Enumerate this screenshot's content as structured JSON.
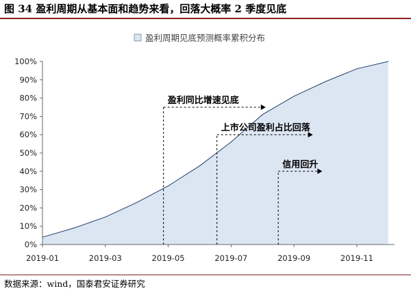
{
  "header": {
    "title": "图 34  盈利周期从基本面和趋势来看，回落大概率 2 季度见底"
  },
  "footer": {
    "source": "数据来源：wind，国泰君安证券研究"
  },
  "chart_data": {
    "type": "area",
    "legend": {
      "label": "盈利周期见底预测概率累积分布",
      "position": "top-center"
    },
    "x_axis": {
      "tick_labels": [
        "2019-01",
        "2019-03",
        "2019-05",
        "2019-07",
        "2019-09",
        "2019-11"
      ],
      "tick_months": [
        1,
        3,
        5,
        7,
        9,
        11
      ],
      "range": [
        1,
        12.2
      ]
    },
    "y_axis": {
      "tick_labels": [
        "0%",
        "10%",
        "20%",
        "30%",
        "40%",
        "50%",
        "60%",
        "70%",
        "80%",
        "90%",
        "100%"
      ],
      "tick_values": [
        0,
        10,
        20,
        30,
        40,
        50,
        60,
        70,
        80,
        90,
        100
      ],
      "range": [
        0,
        100
      ]
    },
    "series": [
      {
        "name": "盈利周期见底预测概率累积分布",
        "color": "#dce6f2",
        "edge_color": "#1f3c66",
        "points": [
          {
            "x": 1.0,
            "y": 4
          },
          {
            "x": 2.0,
            "y": 9
          },
          {
            "x": 3.0,
            "y": 15
          },
          {
            "x": 4.0,
            "y": 23
          },
          {
            "x": 5.0,
            "y": 32
          },
          {
            "x": 6.0,
            "y": 43
          },
          {
            "x": 7.0,
            "y": 56
          },
          {
            "x": 8.0,
            "y": 71
          },
          {
            "x": 9.0,
            "y": 81
          },
          {
            "x": 10.0,
            "y": 89
          },
          {
            "x": 11.0,
            "y": 96
          },
          {
            "x": 12.0,
            "y": 100
          }
        ]
      }
    ],
    "annotations": [
      {
        "text": "盈利同比增速见底",
        "x_start": 4.85,
        "y_level": 75,
        "x_end": 8.1
      },
      {
        "text": "上市公司盈利占比回落",
        "x_start": 6.55,
        "y_level": 60,
        "x_end": 9.6
      },
      {
        "text": "信用回升",
        "x_start": 8.5,
        "y_level": 40,
        "x_end": 9.9
      }
    ],
    "grid": false
  }
}
